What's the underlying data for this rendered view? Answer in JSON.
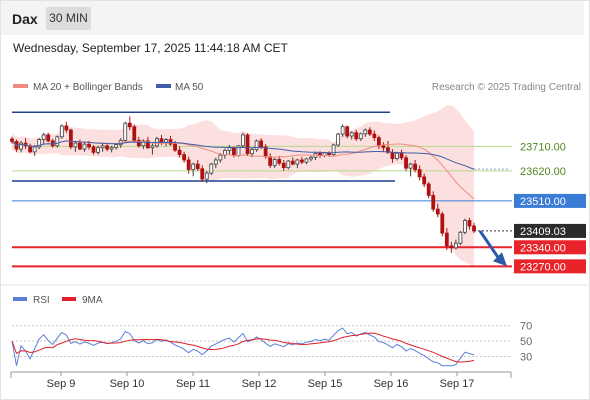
{
  "header": {
    "symbol": "Dax",
    "timeframe": "30 MIN"
  },
  "timestamp": "Wednesday, September 17, 2025 11:44:18 AM CET",
  "legend": {
    "ma20": "MA 20 + Bollinger Bands",
    "ma50": "MA 50",
    "credit": "Research © 2025 Trading Central",
    "rsi": "RSI",
    "rsi_ma": "9MA"
  },
  "colors": {
    "ma20": "#f08a80",
    "bands": "#fbdada",
    "ma50": "#3f5da8",
    "candle_up": "#3e3e3e",
    "candle_down": "#b01010",
    "support": "#e8232a",
    "resistance_line": "#1f3f8f",
    "pivot_line": "#3a7bd5",
    "minor_level": "#b7d88a",
    "rsi": "#5a7fd6",
    "rsi_ma": "#e0202a",
    "arrow": "#2a5aa8"
  },
  "chart_data": {
    "type": "candlestick",
    "x_ticks": [
      "Sep 9",
      "Sep 10",
      "Sep 11",
      "Sep 12",
      "Sep 15",
      "Sep 16",
      "Sep 17"
    ],
    "y_range": [
      23220,
      23880
    ],
    "current_price": "23409.03",
    "levels": [
      {
        "label": "23710.00",
        "kind": "minor"
      },
      {
        "label": "23620.00",
        "kind": "minor"
      },
      {
        "label": "23510.00",
        "kind": "pivot"
      },
      {
        "label": "23340.00",
        "kind": "support"
      },
      {
        "label": "23270.00",
        "kind": "support"
      }
    ],
    "candles": [
      [
        23737,
        23745,
        23720,
        23728
      ],
      [
        23728,
        23735,
        23690,
        23700
      ],
      [
        23700,
        23730,
        23688,
        23722
      ],
      [
        23722,
        23740,
        23700,
        23712
      ],
      [
        23712,
        23720,
        23685,
        23690
      ],
      [
        23690,
        23715,
        23675,
        23708
      ],
      [
        23708,
        23740,
        23700,
        23735
      ],
      [
        23735,
        23760,
        23720,
        23752
      ],
      [
        23752,
        23760,
        23725,
        23730
      ],
      [
        23730,
        23738,
        23705,
        23712
      ],
      [
        23712,
        23750,
        23705,
        23745
      ],
      [
        23745,
        23790,
        23738,
        23785
      ],
      [
        23785,
        23800,
        23760,
        23770
      ],
      [
        23770,
        23775,
        23700,
        23708
      ],
      [
        23708,
        23730,
        23690,
        23722
      ],
      [
        23722,
        23735,
        23696,
        23700
      ],
      [
        23700,
        23725,
        23690,
        23718
      ],
      [
        23718,
        23730,
        23698,
        23708
      ],
      [
        23708,
        23715,
        23680,
        23688
      ],
      [
        23688,
        23712,
        23680,
        23705
      ],
      [
        23705,
        23720,
        23690,
        23712
      ],
      [
        23712,
        23718,
        23692,
        23700
      ],
      [
        23700,
        23712,
        23688,
        23706
      ],
      [
        23706,
        23722,
        23698,
        23716
      ],
      [
        23716,
        23740,
        23705,
        23732
      ],
      [
        23732,
        23800,
        23725,
        23795
      ],
      [
        23795,
        23820,
        23770,
        23782
      ],
      [
        23782,
        23790,
        23725,
        23732
      ],
      [
        23732,
        23745,
        23705,
        23712
      ],
      [
        23712,
        23736,
        23700,
        23730
      ],
      [
        23730,
        23745,
        23700,
        23705
      ],
      [
        23705,
        23720,
        23680,
        23712
      ],
      [
        23712,
        23745,
        23705,
        23738
      ],
      [
        23738,
        23752,
        23715,
        23722
      ],
      [
        23722,
        23740,
        23710,
        23735
      ],
      [
        23735,
        23748,
        23712,
        23718
      ],
      [
        23718,
        23730,
        23690,
        23696
      ],
      [
        23696,
        23710,
        23670,
        23680
      ],
      [
        23680,
        23690,
        23650,
        23660
      ],
      [
        23660,
        23672,
        23610,
        23625
      ],
      [
        23625,
        23650,
        23600,
        23645
      ],
      [
        23645,
        23660,
        23620,
        23628
      ],
      [
        23628,
        23640,
        23580,
        23590
      ],
      [
        23590,
        23620,
        23575,
        23612
      ],
      [
        23612,
        23650,
        23605,
        23645
      ],
      [
        23645,
        23668,
        23630,
        23660
      ],
      [
        23660,
        23685,
        23650,
        23678
      ],
      [
        23678,
        23702,
        23665,
        23695
      ],
      [
        23695,
        23715,
        23680,
        23705
      ],
      [
        23705,
        23710,
        23670,
        23676
      ],
      [
        23676,
        23715,
        23672,
        23712
      ],
      [
        23712,
        23760,
        23705,
        23752
      ],
      [
        23752,
        23758,
        23675,
        23683
      ],
      [
        23683,
        23705,
        23670,
        23698
      ],
      [
        23698,
        23735,
        23690,
        23730
      ],
      [
        23730,
        23740,
        23700,
        23708
      ],
      [
        23708,
        23718,
        23665,
        23672
      ],
      [
        23672,
        23685,
        23630,
        23640
      ],
      [
        23640,
        23668,
        23630,
        23662
      ],
      [
        23662,
        23675,
        23640,
        23648
      ],
      [
        23648,
        23660,
        23620,
        23632
      ],
      [
        23632,
        23660,
        23625,
        23656
      ],
      [
        23656,
        23670,
        23640,
        23645
      ],
      [
        23645,
        23665,
        23630,
        23660
      ],
      [
        23660,
        23672,
        23645,
        23652
      ],
      [
        23652,
        23668,
        23645,
        23664
      ],
      [
        23664,
        23675,
        23655,
        23670
      ],
      [
        23670,
        23690,
        23660,
        23684
      ],
      [
        23684,
        23692,
        23668,
        23676
      ],
      [
        23676,
        23690,
        23670,
        23686
      ],
      [
        23686,
        23692,
        23672,
        23680
      ],
      [
        23680,
        23720,
        23676,
        23715
      ],
      [
        23715,
        23760,
        23708,
        23755
      ],
      [
        23755,
        23790,
        23745,
        23782
      ],
      [
        23782,
        23786,
        23740,
        23748
      ],
      [
        23748,
        23765,
        23735,
        23760
      ],
      [
        23760,
        23770,
        23730,
        23738
      ],
      [
        23738,
        23760,
        23730,
        23756
      ],
      [
        23756,
        23775,
        23745,
        23770
      ],
      [
        23770,
        23780,
        23748,
        23755
      ],
      [
        23755,
        23768,
        23730,
        23742
      ],
      [
        23742,
        23750,
        23700,
        23712
      ],
      [
        23712,
        23725,
        23690,
        23705
      ],
      [
        23705,
        23730,
        23682,
        23688
      ],
      [
        23688,
        23700,
        23650,
        23665
      ],
      [
        23665,
        23690,
        23658,
        23685
      ],
      [
        23685,
        23698,
        23660,
        23668
      ],
      [
        23668,
        23678,
        23620,
        23630
      ],
      [
        23630,
        23650,
        23600,
        23645
      ],
      [
        23645,
        23660,
        23615,
        23625
      ],
      [
        23625,
        23640,
        23585,
        23598
      ],
      [
        23598,
        23610,
        23560,
        23572
      ],
      [
        23572,
        23580,
        23520,
        23530
      ],
      [
        23530,
        23545,
        23470,
        23480
      ],
      [
        23480,
        23500,
        23450,
        23462
      ],
      [
        23462,
        23470,
        23380,
        23392
      ],
      [
        23392,
        23410,
        23330,
        23345
      ],
      [
        23345,
        23360,
        23320,
        23338
      ],
      [
        23338,
        23368,
        23332,
        23355
      ],
      [
        23355,
        23400,
        23348,
        23395
      ],
      [
        23395,
        23445,
        23388,
        23438
      ],
      [
        23438,
        23448,
        23405,
        23418
      ],
      [
        23418,
        23430,
        23392,
        23400
      ]
    ],
    "rsi_ticks": [
      70,
      50,
      30
    ],
    "rsi_range": [
      15,
      80
    ]
  }
}
